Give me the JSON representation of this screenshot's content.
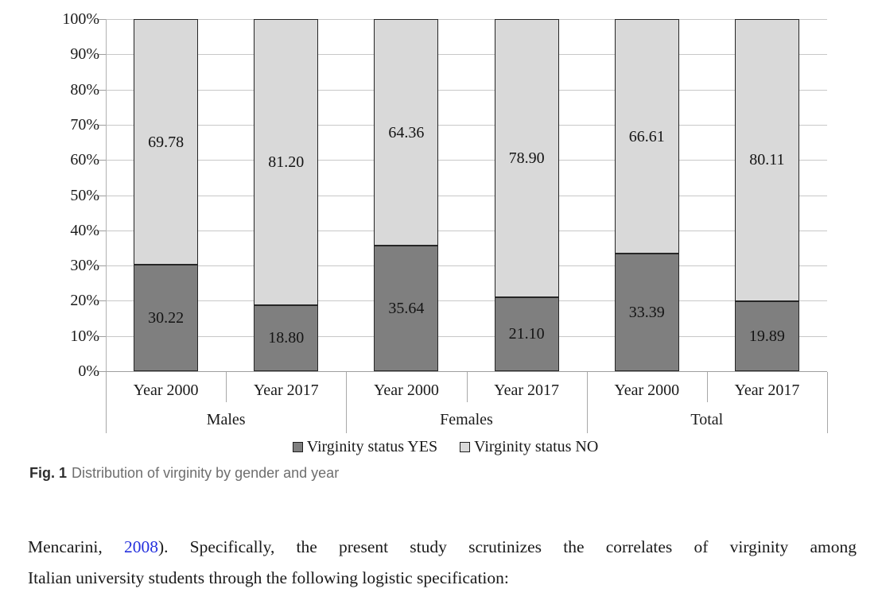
{
  "chart_data": {
    "type": "bar",
    "stacked": true,
    "unit": "percent",
    "groups": [
      "Males",
      "Females",
      "Total"
    ],
    "categories": [
      "Year 2000",
      "Year 2017",
      "Year 2000",
      "Year 2017",
      "Year 2000",
      "Year 2017"
    ],
    "series": [
      {
        "name": "Virginity status YES",
        "color": "#7f7f7f",
        "values": [
          30.22,
          18.8,
          35.64,
          21.1,
          33.39,
          19.89
        ]
      },
      {
        "name": "Virginity status NO",
        "color": "#d9d9d9",
        "values": [
          69.78,
          81.2,
          64.36,
          78.9,
          66.61,
          80.11
        ]
      }
    ],
    "ylim": [
      0,
      100
    ],
    "y_tick_step": 10,
    "y_tick_suffix": "%",
    "grid": true,
    "legend_position": "bottom"
  },
  "figure": {
    "caption_label": "Fig. 1",
    "caption_text": "Distribution of virginity by gender and year"
  },
  "paragraph": {
    "line1_before_link": "Mencarini, ",
    "link_text": "2008",
    "line1_after_link": "). Specifically, the present study scrutinizes the correlates of virginity among",
    "line2": "Italian university students through the following logistic specification:"
  },
  "colors": {
    "yes_fill": "#7f7f7f",
    "no_fill": "#d9d9d9",
    "bar_border": "#262626",
    "gridline": "#c8c8c8",
    "link_blue": "#2531dd",
    "caption_gray": "#6e6e6e"
  }
}
